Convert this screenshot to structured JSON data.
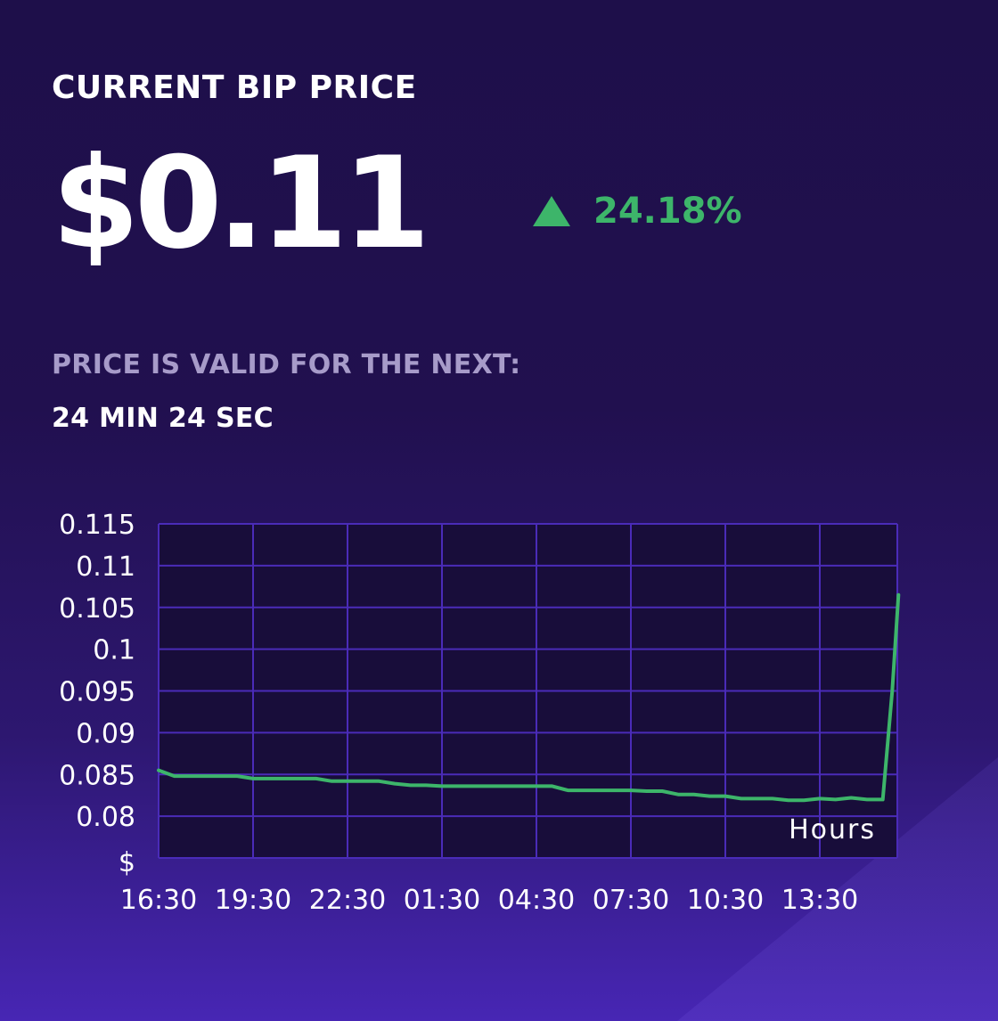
{
  "header": {
    "title": "CURRENT BIP PRICE"
  },
  "price": {
    "value": "$0.11"
  },
  "change": {
    "text": "24.18%",
    "direction": "up",
    "color": "#3db56a"
  },
  "validity": {
    "label": "PRICE IS VALID FOR THE NEXT:",
    "value": "24 MIN 24 SEC"
  },
  "chart_data": {
    "type": "line",
    "grid": true,
    "ylabel": "$",
    "xlabel": "Hours",
    "ylim": [
      0.075,
      0.115
    ],
    "y_ticks": [
      "0.115",
      "0.11",
      "0.105",
      "0.1",
      "0.095",
      "0.09",
      "0.085",
      "0.08"
    ],
    "x_ticks": [
      "16:30",
      "19:30",
      "22:30",
      "01:30",
      "04:30",
      "07:30",
      "10:30",
      "13:30"
    ],
    "series": [
      {
        "color": "#3db56a",
        "x": [
          0,
          0.5,
          1,
          1.5,
          2,
          2.5,
          3,
          3.5,
          4,
          4.5,
          5,
          5.5,
          6,
          6.5,
          7,
          7.5,
          8,
          8.5,
          9,
          9.5,
          10,
          10.5,
          11,
          11.5,
          12,
          12.5,
          13,
          13.5,
          14,
          14.5,
          15,
          15.5,
          16,
          16.5,
          17,
          17.5,
          18,
          18.5,
          19,
          19.5,
          20,
          20.5,
          21,
          21.5,
          22,
          22.5,
          23,
          23.3,
          23.5
        ],
        "values": [
          0.0855,
          0.0848,
          0.0848,
          0.0848,
          0.0848,
          0.0848,
          0.0845,
          0.0845,
          0.0845,
          0.0845,
          0.0845,
          0.0842,
          0.0842,
          0.0842,
          0.0842,
          0.0839,
          0.0837,
          0.0837,
          0.0836,
          0.0836,
          0.0836,
          0.0836,
          0.0836,
          0.0836,
          0.0836,
          0.0836,
          0.0831,
          0.0831,
          0.0831,
          0.0831,
          0.0831,
          0.083,
          0.083,
          0.0826,
          0.0826,
          0.0824,
          0.0824,
          0.0821,
          0.0821,
          0.0821,
          0.0819,
          0.0819,
          0.0821,
          0.082,
          0.0822,
          0.082,
          0.082,
          0.095,
          0.1065
        ]
      }
    ]
  }
}
